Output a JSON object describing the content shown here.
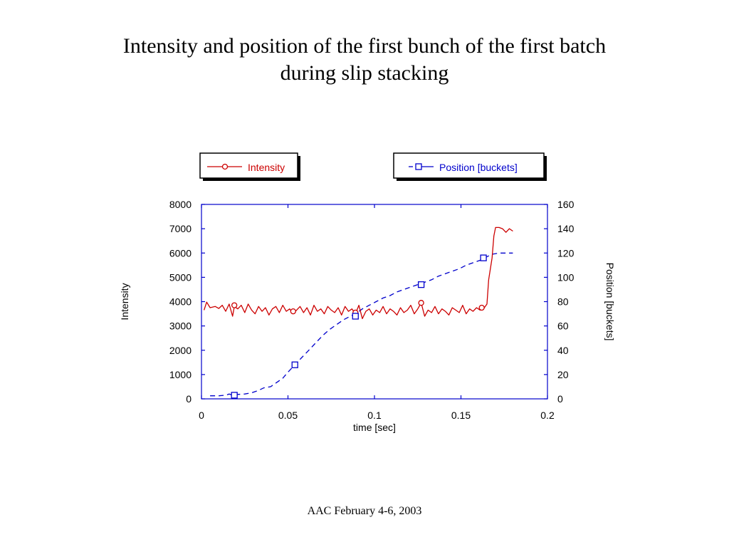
{
  "slide": {
    "title_line1": "Intensity and position of the first bunch of the first batch",
    "title_line2": "during slip stacking",
    "footer": "AAC February 4-6, 2003"
  },
  "colors": {
    "intensity": "#cc0000",
    "position": "#0000cc",
    "axes": "#0000cc",
    "text": "#000000"
  },
  "chart_data": {
    "type": "line",
    "xlabel": "time [sec]",
    "ylabel": "Intensity",
    "y2label": "Position [buckets]",
    "xlim": [
      0,
      0.2
    ],
    "ylim": [
      0,
      8000
    ],
    "y2lim": [
      0,
      160
    ],
    "x_ticks": [
      "0",
      "0.05",
      "0.1",
      "0.15",
      "0.2"
    ],
    "y_ticks": [
      "0",
      "1000",
      "2000",
      "3000",
      "4000",
      "5000",
      "6000",
      "7000",
      "8000"
    ],
    "y2_ticks": [
      "0",
      "20",
      "40",
      "60",
      "80",
      "100",
      "120",
      "140",
      "160"
    ],
    "legend": [
      "Intensity",
      "Position [buckets]"
    ],
    "series": [
      {
        "name": "Intensity",
        "axis": "left",
        "marker": "circle",
        "x": [
          0.0015,
          0.003,
          0.005,
          0.008,
          0.01,
          0.012,
          0.014,
          0.016,
          0.018,
          0.019,
          0.021,
          0.023,
          0.025,
          0.027,
          0.029,
          0.031,
          0.033,
          0.035,
          0.037,
          0.039,
          0.041,
          0.043,
          0.045,
          0.047,
          0.049,
          0.051,
          0.053,
          0.055,
          0.057,
          0.059,
          0.061,
          0.063,
          0.065,
          0.067,
          0.069,
          0.071,
          0.073,
          0.075,
          0.077,
          0.079,
          0.081,
          0.083,
          0.085,
          0.087,
          0.089,
          0.091,
          0.093,
          0.095,
          0.097,
          0.099,
          0.101,
          0.103,
          0.105,
          0.107,
          0.109,
          0.111,
          0.113,
          0.115,
          0.117,
          0.119,
          0.121,
          0.123,
          0.125,
          0.127,
          0.129,
          0.131,
          0.133,
          0.135,
          0.137,
          0.139,
          0.141,
          0.143,
          0.145,
          0.147,
          0.149,
          0.151,
          0.153,
          0.155,
          0.157,
          0.159,
          0.161,
          0.163,
          0.165,
          0.166,
          0.168,
          0.169,
          0.17,
          0.172,
          0.174,
          0.176,
          0.178,
          0.18
        ],
        "values": [
          3650,
          3980,
          3750,
          3800,
          3720,
          3850,
          3600,
          3900,
          3400,
          3800,
          3700,
          3850,
          3550,
          3900,
          3650,
          3500,
          3800,
          3600,
          3750,
          3450,
          3700,
          3800,
          3550,
          3850,
          3600,
          3700,
          3500,
          3650,
          3800,
          3550,
          3750,
          3450,
          3850,
          3600,
          3700,
          3500,
          3800,
          3650,
          3550,
          3750,
          3450,
          3800,
          3600,
          3700,
          3500,
          3850,
          3300,
          3600,
          3700,
          3450,
          3650,
          3550,
          3800,
          3500,
          3700,
          3600,
          3450,
          3750,
          3550,
          3650,
          3850,
          3500,
          3700,
          3950,
          3400,
          3650,
          3550,
          3800,
          3500,
          3700,
          3600,
          3450,
          3750,
          3650,
          3550,
          3850,
          3500,
          3700,
          3600,
          3750,
          3650,
          3700,
          3900,
          4900,
          5800,
          6700,
          7050,
          7050,
          7000,
          6850,
          7000,
          6900
        ]
      },
      {
        "name": "Position [buckets]",
        "axis": "right",
        "marker": "square",
        "x": [
          0.005,
          0.01,
          0.014,
          0.016,
          0.018,
          0.019,
          0.025,
          0.029,
          0.033,
          0.036,
          0.04,
          0.043,
          0.047,
          0.05,
          0.054,
          0.058,
          0.062,
          0.066,
          0.07,
          0.074,
          0.078,
          0.082,
          0.086,
          0.089,
          0.093,
          0.097,
          0.101,
          0.105,
          0.109,
          0.113,
          0.117,
          0.121,
          0.125,
          0.129,
          0.133,
          0.137,
          0.141,
          0.145,
          0.149,
          0.153,
          0.157,
          0.161,
          0.165,
          0.168,
          0.172,
          0.176,
          0.18
        ],
        "values": [
          2.5,
          2.5,
          3,
          4,
          3,
          3.5,
          4,
          5,
          7,
          9,
          10,
          13,
          17,
          22,
          28,
          34,
          40,
          46,
          52,
          57,
          61,
          65,
          68,
          70,
          74,
          77,
          80,
          83,
          85,
          88,
          90,
          92,
          94,
          96,
          98,
          101,
          103,
          105,
          107,
          110,
          112,
          114,
          117,
          119,
          120,
          120,
          120
        ]
      }
    ],
    "intensity_markers": [
      [
        0.019,
        3850
      ],
      [
        0.053,
        3600
      ],
      [
        0.089,
        3550
      ],
      [
        0.127,
        3950
      ],
      [
        0.162,
        3750
      ]
    ],
    "position_markers": [
      [
        0.019,
        3
      ],
      [
        0.054,
        28
      ],
      [
        0.089,
        68
      ],
      [
        0.127,
        94
      ],
      [
        0.163,
        116
      ]
    ]
  }
}
